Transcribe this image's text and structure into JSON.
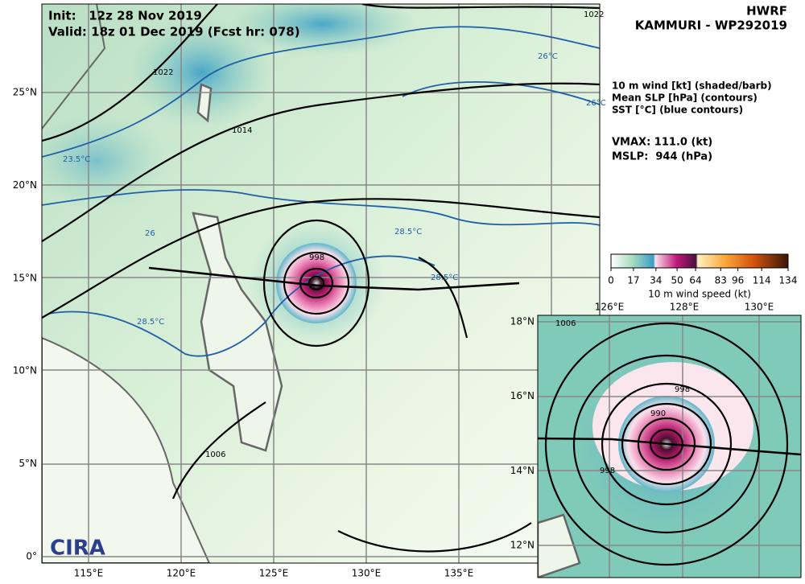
{
  "header": {
    "init": "Init:   12z 28 Nov 2019",
    "valid": "Valid: 18z 01 Dec 2019 (Fcst hr: 078)",
    "model": "HWRF",
    "storm": "KAMMURI - WP292019"
  },
  "fields": [
    "10 m wind [kt] (shaded/barb)",
    "Mean SLP [hPa] (contours)",
    "SST [°C] (blue contours)"
  ],
  "stats": [
    "VMAX: 111.0 (kt)",
    "MSLP:  944 (hPa)"
  ],
  "colorbar": {
    "ticks": [
      0,
      17,
      34,
      50,
      64,
      83,
      96,
      114,
      134
    ],
    "label": "10 m wind speed (kt)"
  },
  "main_map": {
    "lon_labels": [
      "115°E",
      "120°E",
      "125°E",
      "130°E",
      "135°E"
    ],
    "lat_labels": [
      "25°N",
      "20°N",
      "15°N",
      "10°N",
      "5°N",
      "0°"
    ],
    "contour_labels": [
      "1022",
      "1014",
      "998",
      "1006",
      "1022",
      "26°C",
      "26°C",
      "23.5°C",
      "28.5°C",
      "28.5°C",
      "28.5°C",
      "26"
    ]
  },
  "inset_map": {
    "lon_labels": [
      "126°E",
      "128°E",
      "130°E"
    ],
    "lat_labels": [
      "18°N",
      "16°N",
      "14°N",
      "12°N"
    ],
    "contour_labels": [
      "998",
      "990",
      "998",
      "1006"
    ]
  },
  "logo": "CIRA"
}
